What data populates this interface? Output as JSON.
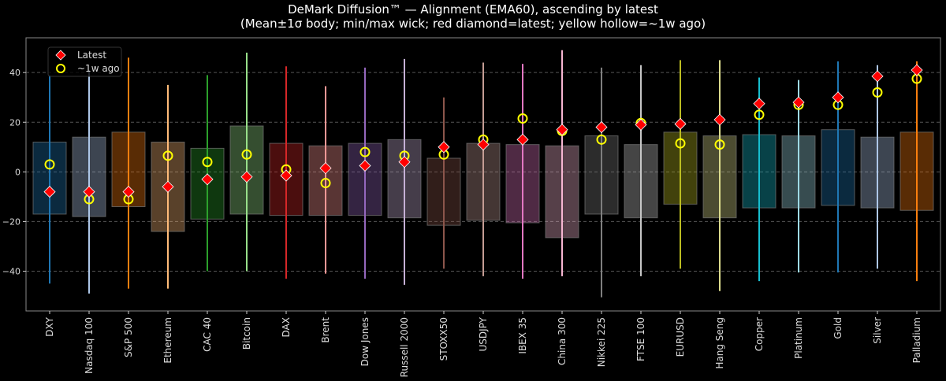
{
  "chart_data": {
    "type": "box-range",
    "title": "DeMark Diffusion™ — Alignment (EMA60), ascending by latest",
    "subtitle": "(Mean±1σ body; min/max wick; red diamond=latest; yellow hollow=~1w ago)",
    "xlabel": "",
    "ylabel": "",
    "ylim": [
      -56,
      54
    ],
    "yticks": [
      -40,
      -20,
      0,
      20,
      40
    ],
    "grid": true,
    "legend": {
      "placement": "top-left",
      "entries": [
        "Latest",
        "~1w ago"
      ]
    },
    "marker_colors": {
      "latest": "#ff0000",
      "prev": "#ffff00"
    },
    "categories": [
      "DXY",
      "Nasdaq 100",
      "S&P 500",
      "Ethereum",
      "CAC 40",
      "Bitcoin",
      "DAX",
      "Brent",
      "Dow Jones",
      "Russell 2000",
      "STOXX50",
      "USDJPY",
      "IBEX 35",
      "China 300",
      "Nikkei 225",
      "FTSE 100",
      "EURUSD",
      "Hang Seng",
      "Copper",
      "Platinum",
      "Gold",
      "Silver",
      "Palladium"
    ],
    "colors": [
      "#1f77b4",
      "#aec7e8",
      "#ff7f0e",
      "#ffbb78",
      "#2ca02c",
      "#98df8a",
      "#d62728",
      "#ff9896",
      "#9467bd",
      "#c5b0d5",
      "#8c564b",
      "#c49c94",
      "#e377c2",
      "#f7b6d2",
      "#7f7f7f",
      "#c7c7c7",
      "#bcbd22",
      "#dbdb8d",
      "#17becf",
      "#9edae5",
      "#1f77b4",
      "#aec7e8",
      "#ff7f0e"
    ],
    "body_high": [
      12,
      14,
      16,
      12,
      9.5,
      18.5,
      11.5,
      10.5,
      11.5,
      13,
      5.5,
      11.5,
      11,
      10.5,
      14.5,
      11,
      16,
      14.5,
      15,
      14.5,
      17,
      14,
      16
    ],
    "body_low": [
      -17,
      -18,
      -14,
      -24,
      -19,
      -17,
      -17.5,
      -17.5,
      -17.5,
      -18.5,
      -21.5,
      -19.5,
      -20.5,
      -26.5,
      -17,
      -18.5,
      -13,
      -18.5,
      -14.5,
      -14.5,
      -13.5,
      -14.5,
      -15.5
    ],
    "max": [
      39,
      41,
      46,
      35,
      39,
      48,
      42.5,
      34.5,
      42,
      45.5,
      30,
      44,
      43.5,
      49,
      42,
      43,
      45,
      45,
      38,
      37,
      44.5,
      43,
      44.5
    ],
    "min": [
      -45,
      -49,
      -47,
      -47,
      -40,
      -40,
      -43,
      -41,
      -43,
      -45.5,
      -39,
      -42,
      -43,
      -42,
      -50.5,
      -42,
      -39,
      -48,
      -44,
      -40.5,
      -40.5,
      -39,
      -44
    ],
    "latest": [
      -8,
      -8,
      -8,
      -6,
      -3,
      -2,
      -1.5,
      1.5,
      2.5,
      4,
      10,
      11,
      13,
      17,
      18,
      19,
      19.3,
      21,
      27.5,
      28,
      30,
      38.5,
      41
    ],
    "prev": [
      3,
      -11,
      -11,
      6.5,
      4,
      7,
      1,
      -4.5,
      8,
      6.5,
      7,
      13,
      21.5,
      16.5,
      13,
      19.7,
      11.5,
      11,
      23,
      27,
      27,
      32,
      37.5
    ]
  }
}
